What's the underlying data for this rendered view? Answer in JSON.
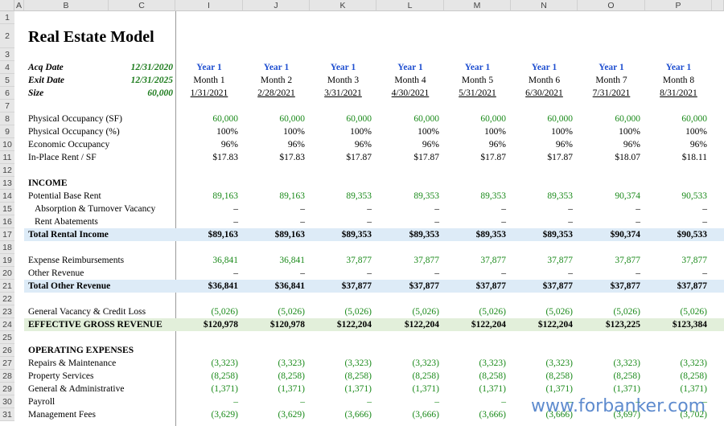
{
  "columns": [
    "A",
    "B",
    "C",
    "I",
    "J",
    "K",
    "L",
    "M",
    "N",
    "O",
    "P"
  ],
  "rows": [
    {
      "row": "1"
    },
    {
      "row": "2",
      "label": "Real Estate Model"
    },
    {
      "row": "3"
    },
    {
      "row": "4",
      "label": "Acq Date",
      "value": "12/31/2020",
      "cells": [
        "Year 1",
        "Year 1",
        "Year 1",
        "Year 1",
        "Year 1",
        "Year 1",
        "Year 1",
        "Year 1"
      ]
    },
    {
      "row": "5",
      "label": "Exit Date",
      "value": "12/31/2025",
      "cells": [
        "Month 1",
        "Month 2",
        "Month 3",
        "Month 4",
        "Month 5",
        "Month 6",
        "Month 7",
        "Month 8"
      ]
    },
    {
      "row": "6",
      "label": "Size",
      "value": "60,000",
      "cells": [
        "1/31/2021",
        "2/28/2021",
        "3/31/2021",
        "4/30/2021",
        "5/31/2021",
        "6/30/2021",
        "7/31/2021",
        "8/31/2021"
      ]
    },
    {
      "row": "7"
    },
    {
      "row": "8",
      "label": "Physical Occupancy (SF)",
      "cells": [
        "60,000",
        "60,000",
        "60,000",
        "60,000",
        "60,000",
        "60,000",
        "60,000",
        "60,000"
      ]
    },
    {
      "row": "9",
      "label": "Physical Occupancy (%)",
      "cells": [
        "100%",
        "100%",
        "100%",
        "100%",
        "100%",
        "100%",
        "100%",
        "100%"
      ]
    },
    {
      "row": "10",
      "label": "Economic Occupancy",
      "cells": [
        "96%",
        "96%",
        "96%",
        "96%",
        "96%",
        "96%",
        "96%",
        "96%"
      ]
    },
    {
      "row": "11",
      "label": "In-Place Rent / SF",
      "cells": [
        "$17.83",
        "$17.83",
        "$17.87",
        "$17.87",
        "$17.87",
        "$17.87",
        "$18.07",
        "$18.11"
      ]
    },
    {
      "row": "12"
    },
    {
      "row": "13",
      "label": "INCOME"
    },
    {
      "row": "14",
      "label": "Potential Base Rent",
      "cells": [
        "89,163",
        "89,163",
        "89,353",
        "89,353",
        "89,353",
        "89,353",
        "90,374",
        "90,533"
      ]
    },
    {
      "row": "15",
      "label": "Absorption & Turnover Vacancy",
      "cells": [
        "–",
        "–",
        "–",
        "–",
        "–",
        "–",
        "–",
        "–"
      ]
    },
    {
      "row": "16",
      "label": "Rent Abatements",
      "cells": [
        "–",
        "–",
        "–",
        "–",
        "–",
        "–",
        "–",
        "–"
      ]
    },
    {
      "row": "17",
      "label": "Total Rental Income",
      "cells": [
        "$89,163",
        "$89,163",
        "$89,353",
        "$89,353",
        "$89,353",
        "$89,353",
        "$90,374",
        "$90,533"
      ]
    },
    {
      "row": "18"
    },
    {
      "row": "19",
      "label": "Expense Reimbursements",
      "cells": [
        "36,841",
        "36,841",
        "37,877",
        "37,877",
        "37,877",
        "37,877",
        "37,877",
        "37,877"
      ]
    },
    {
      "row": "20",
      "label": "Other Revenue",
      "cells": [
        "–",
        "–",
        "–",
        "–",
        "–",
        "–",
        "–",
        "–"
      ]
    },
    {
      "row": "21",
      "label": "Total Other Revenue",
      "cells": [
        "$36,841",
        "$36,841",
        "$37,877",
        "$37,877",
        "$37,877",
        "$37,877",
        "$37,877",
        "$37,877"
      ]
    },
    {
      "row": "22"
    },
    {
      "row": "23",
      "label": "General Vacancy & Credit Loss",
      "cells": [
        "(5,026)",
        "(5,026)",
        "(5,026)",
        "(5,026)",
        "(5,026)",
        "(5,026)",
        "(5,026)",
        "(5,026)"
      ]
    },
    {
      "row": "24",
      "label": "EFFECTIVE GROSS REVENUE",
      "cells": [
        "$120,978",
        "$120,978",
        "$122,204",
        "$122,204",
        "$122,204",
        "$122,204",
        "$123,225",
        "$123,384"
      ]
    },
    {
      "row": "25"
    },
    {
      "row": "26",
      "label": "OPERATING EXPENSES"
    },
    {
      "row": "27",
      "label": "Repairs & Maintenance",
      "cells": [
        "(3,323)",
        "(3,323)",
        "(3,323)",
        "(3,323)",
        "(3,323)",
        "(3,323)",
        "(3,323)",
        "(3,323)"
      ]
    },
    {
      "row": "28",
      "label": "Property Services",
      "cells": [
        "(8,258)",
        "(8,258)",
        "(8,258)",
        "(8,258)",
        "(8,258)",
        "(8,258)",
        "(8,258)",
        "(8,258)"
      ]
    },
    {
      "row": "29",
      "label": "General & Administrative",
      "cells": [
        "(1,371)",
        "(1,371)",
        "(1,371)",
        "(1,371)",
        "(1,371)",
        "(1,371)",
        "(1,371)",
        "(1,371)"
      ]
    },
    {
      "row": "30",
      "label": "Payroll",
      "cells": [
        "–",
        "–",
        "–",
        "–",
        "–",
        "–",
        "–",
        "–"
      ]
    },
    {
      "row": "31",
      "label": "Management Fees",
      "cells": [
        "(3,629)",
        "(3,629)",
        "(3,666)",
        "(3,666)",
        "(3,666)",
        "(3,666)",
        "(3,697)",
        "(3,702)"
      ]
    }
  ],
  "watermark": "www.forbanker.com"
}
